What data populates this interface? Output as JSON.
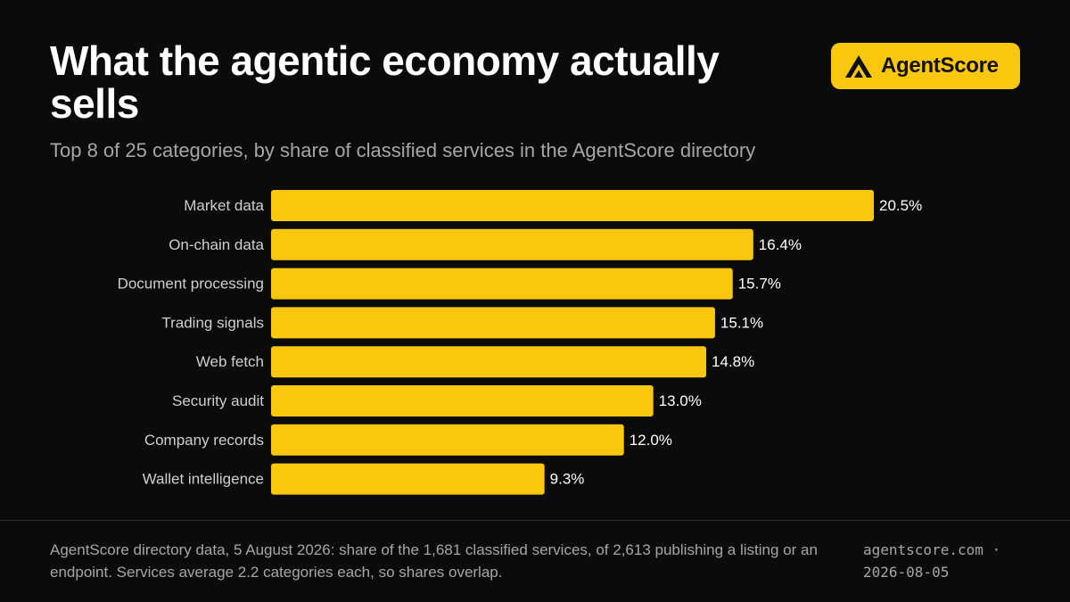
{
  "header": {
    "title": "What the agentic economy actually sells",
    "subtitle": "Top 8 of 25 categories, by share of classified services in the AgentScore directory"
  },
  "logo": {
    "icon": "agentscore-logo-icon",
    "text": "AgentScore"
  },
  "colors": {
    "background": "#0b0b0c",
    "bar": "#f9c80e",
    "text": "#ffffff",
    "muted": "#a6a6a6",
    "accent": "#f9c80e"
  },
  "chart_data": {
    "type": "bar",
    "orientation": "horizontal",
    "title": "What the agentic economy actually sells",
    "subtitle": "Top 8 of 25 categories, by share of classified services in the AgentScore directory",
    "categories": [
      "Market data",
      "On-chain data",
      "Document processing",
      "Trading signals",
      "Web fetch",
      "Security audit",
      "Company records",
      "Wallet intelligence"
    ],
    "values": [
      20.5,
      16.4,
      15.7,
      15.1,
      14.8,
      13.0,
      12.0,
      9.3
    ],
    "value_labels": [
      "20.5%",
      "16.4%",
      "15.7%",
      "15.1%",
      "14.8%",
      "13.0%",
      "12.0%",
      "9.3%"
    ],
    "unit": "%",
    "xlim": [
      0,
      20.5
    ],
    "grid": false,
    "legend": "none"
  },
  "footer": {
    "note": "AgentScore directory data, 5 August 2026: share of the 1,681 classified services, of 2,613 publishing a listing or an endpoint. Services average 2.2 categories each, so shares overlap.",
    "source_line1": "agentscore.com ·",
    "source_line2": "2026-08-05"
  }
}
